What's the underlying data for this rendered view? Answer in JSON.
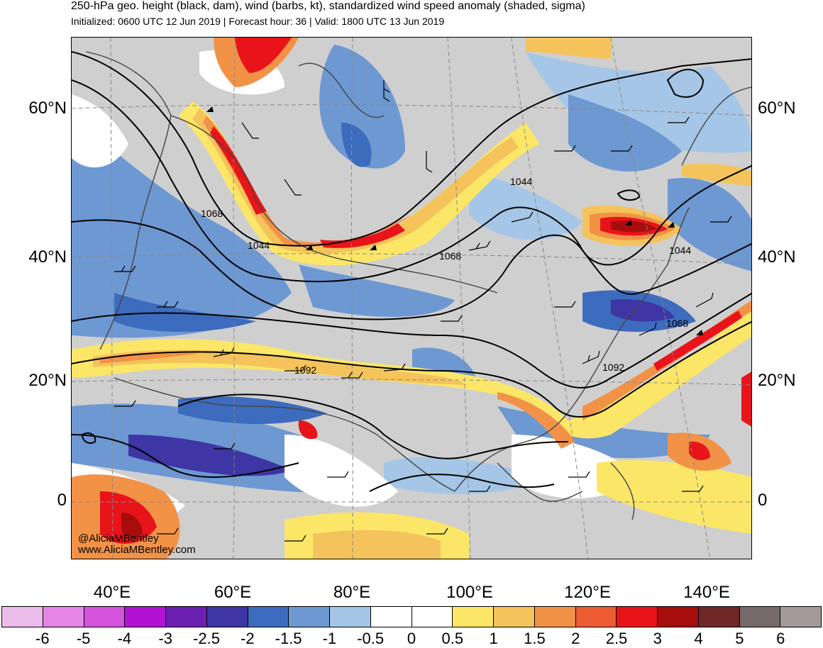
{
  "header": {
    "title": "250-hPa geo. height (black, dam), wind (barbs, kt), standardized wind speed anomaly (shaded, sigma)",
    "subtitle": "Initialized: 0600 UTC 12 Jun 2019 | Forecast hour: 36 | Valid: 1800 UTC 13 Jun 2019"
  },
  "map": {
    "lat_labels": [
      "60°N",
      "40°N",
      "20°N",
      "0"
    ],
    "lon_labels": [
      "40°E",
      "60°E",
      "80°E",
      "100°E",
      "120°E",
      "140°E"
    ],
    "contour_labels": [
      "1068",
      "1044",
      "1044",
      "1068",
      "1044",
      "1068",
      "1092",
      "1092"
    ],
    "credit": {
      "handle": "@AliciaMBentley",
      "site": "www.AliciaMBentley.com"
    }
  },
  "colorbar": {
    "colors": [
      "#ebbbe9",
      "#e585e5",
      "#d552dd",
      "#b312d4",
      "#6c1fb1",
      "#3d36a4",
      "#3d6bbd",
      "#6d98d2",
      "#a5c6e6",
      "#ffffff",
      "#ffffff",
      "#fbe668",
      "#f4c35b",
      "#f29247",
      "#ee5c34",
      "#e8141a",
      "#a80d0d",
      "#702727",
      "#766a6a",
      "#a49a9a"
    ],
    "labels": [
      "-6",
      "-5",
      "-4",
      "-3",
      "-2.5",
      "-2",
      "-1.5",
      "-1",
      "-0.5",
      "0",
      "0.5",
      "1",
      "1.5",
      "2",
      "2.5",
      "3",
      "4",
      "5",
      "6"
    ]
  }
}
